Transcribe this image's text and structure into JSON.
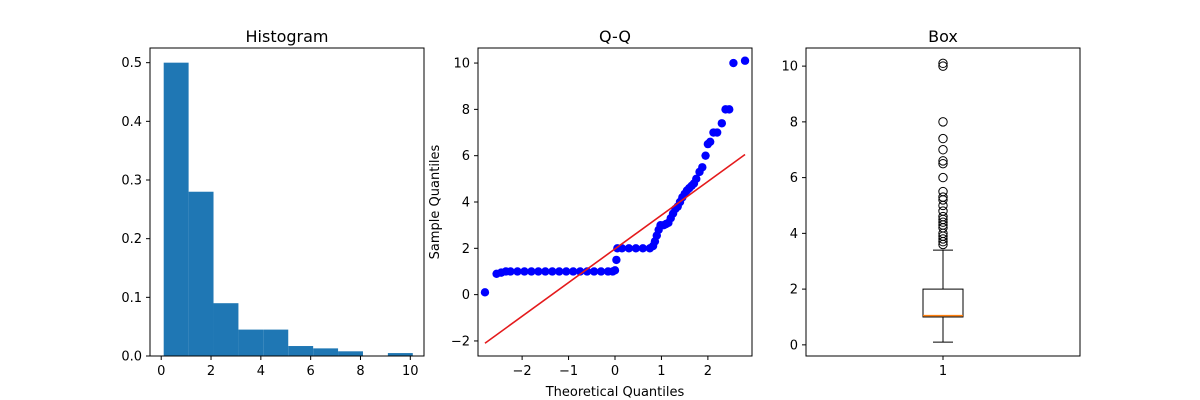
{
  "chart_data": [
    {
      "type": "bar",
      "title": "Histogram",
      "xlabel": "",
      "ylabel": "",
      "xlim": [
        -0.45,
        10.55
      ],
      "ylim": [
        0,
        0.525
      ],
      "xticks": [
        0,
        2,
        4,
        6,
        8,
        10
      ],
      "yticks": [
        0.0,
        0.1,
        0.2,
        0.3,
        0.4,
        0.5
      ],
      "xtick_labels": [
        "0",
        "2",
        "4",
        "6",
        "8",
        "10"
      ],
      "ytick_labels": [
        "0.0",
        "0.1",
        "0.2",
        "0.3",
        "0.4",
        "0.5"
      ],
      "bin_edges": [
        0.1,
        1.1,
        2.1,
        3.1,
        4.1,
        5.1,
        6.1,
        7.1,
        8.1,
        9.1,
        10.1
      ],
      "values": [
        0.5,
        0.28,
        0.09,
        0.045,
        0.045,
        0.017,
        0.013,
        0.008,
        0.0,
        0.005
      ],
      "color": "#1f77b4",
      "grid": false
    },
    {
      "type": "scatter",
      "title": "Q-Q",
      "xlabel": "Theoretical Quantiles",
      "ylabel": "Sample Quantiles",
      "xlim": [
        -2.95,
        2.95
      ],
      "ylim": [
        -2.65,
        10.65
      ],
      "xticks": [
        -2,
        -1,
        0,
        1,
        2
      ],
      "yticks": [
        -2,
        0,
        2,
        4,
        6,
        8,
        10
      ],
      "xtick_labels": [
        "−2",
        "−1",
        "0",
        "1",
        "2"
      ],
      "ytick_labels": [
        "−2",
        "0",
        "2",
        "4",
        "6",
        "8",
        "10"
      ],
      "points": [
        [
          -2.8,
          0.1
        ],
        [
          -2.55,
          0.9
        ],
        [
          -2.45,
          0.95
        ],
        [
          -2.35,
          1.0
        ],
        [
          -2.25,
          1.0
        ],
        [
          -2.1,
          1.0
        ],
        [
          -1.95,
          1.0
        ],
        [
          -1.8,
          1.0
        ],
        [
          -1.65,
          1.0
        ],
        [
          -1.5,
          1.0
        ],
        [
          -1.35,
          1.0
        ],
        [
          -1.2,
          1.0
        ],
        [
          -1.05,
          1.0
        ],
        [
          -0.9,
          1.0
        ],
        [
          -0.75,
          1.0
        ],
        [
          -0.6,
          1.0
        ],
        [
          -0.45,
          1.0
        ],
        [
          -0.3,
          1.0
        ],
        [
          -0.15,
          1.0
        ],
        [
          -0.05,
          1.0
        ],
        [
          0.0,
          1.05
        ],
        [
          0.03,
          1.5
        ],
        [
          0.05,
          2.0
        ],
        [
          0.15,
          2.0
        ],
        [
          0.3,
          2.0
        ],
        [
          0.45,
          2.0
        ],
        [
          0.6,
          2.0
        ],
        [
          0.75,
          2.0
        ],
        [
          0.82,
          2.1
        ],
        [
          0.86,
          2.3
        ],
        [
          0.9,
          2.55
        ],
        [
          0.94,
          2.8
        ],
        [
          0.98,
          3.0
        ],
        [
          1.05,
          3.0
        ],
        [
          1.1,
          3.05
        ],
        [
          1.15,
          3.1
        ],
        [
          1.2,
          3.3
        ],
        [
          1.25,
          3.5
        ],
        [
          1.3,
          3.7
        ],
        [
          1.35,
          3.8
        ],
        [
          1.4,
          4.0
        ],
        [
          1.45,
          4.2
        ],
        [
          1.5,
          4.35
        ],
        [
          1.55,
          4.5
        ],
        [
          1.6,
          4.6
        ],
        [
          1.65,
          4.7
        ],
        [
          1.7,
          4.8
        ],
        [
          1.75,
          5.0
        ],
        [
          1.82,
          5.3
        ],
        [
          1.88,
          5.5
        ],
        [
          1.95,
          6.0
        ],
        [
          2.0,
          6.5
        ],
        [
          2.05,
          6.6
        ],
        [
          2.12,
          7.0
        ],
        [
          2.2,
          7.0
        ],
        [
          2.3,
          7.4
        ],
        [
          2.38,
          8.0
        ],
        [
          2.46,
          8.0
        ],
        [
          2.55,
          10.0
        ],
        [
          2.8,
          10.1
        ]
      ],
      "fit_line": [
        [
          -2.8,
          -2.1
        ],
        [
          2.8,
          6.05
        ]
      ],
      "point_color": "#0000ff",
      "line_color": "#e41a1c",
      "grid": false
    },
    {
      "type": "box",
      "title": "Box",
      "xlabel": "",
      "ylabel": "",
      "ylim": [
        -0.4,
        10.65
      ],
      "yticks": [
        0,
        2,
        4,
        6,
        8,
        10
      ],
      "ytick_labels": [
        "0",
        "2",
        "4",
        "6",
        "8",
        "10"
      ],
      "xtick_labels": [
        "1"
      ],
      "whisker_low": 0.1,
      "q1": 1.0,
      "median": 1.05,
      "q3": 2.0,
      "whisker_high": 3.4,
      "outliers": [
        3.6,
        3.7,
        3.8,
        3.9,
        4.0,
        4.2,
        4.3,
        4.4,
        4.5,
        4.6,
        4.8,
        5.0,
        5.2,
        5.3,
        5.5,
        6.0,
        6.5,
        6.6,
        7.0,
        7.4,
        8.0,
        10.0,
        10.1
      ],
      "box_color": "#000000",
      "median_color": "#ff7f0e",
      "grid": false
    }
  ]
}
